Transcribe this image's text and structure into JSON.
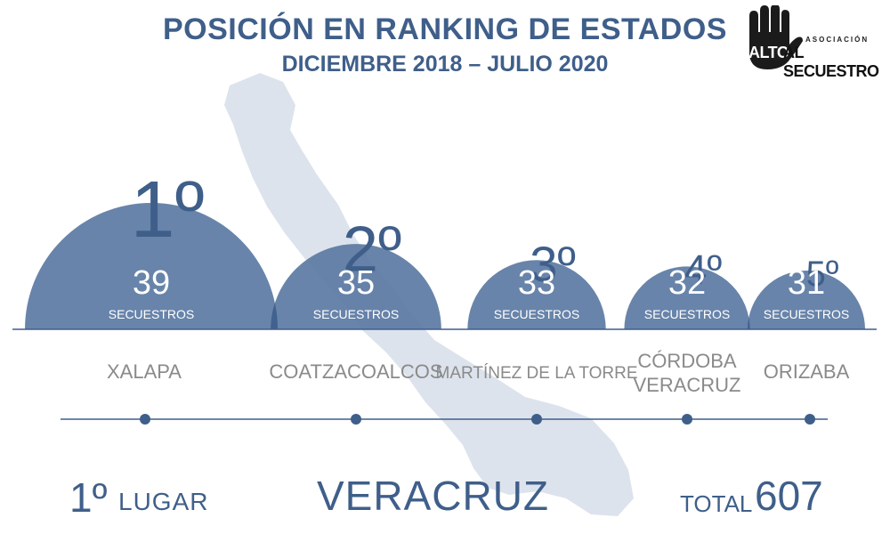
{
  "header": {
    "title": "POSICIÓN EN RANKING DE ESTADOS",
    "subtitle": "DICIEMBRE 2018 – JULIO 2020"
  },
  "logo": {
    "association": "ASOCIACIÓN",
    "alto": "ALTO",
    "name": "AL SECUESTRO"
  },
  "colors": {
    "circle_fill": "#5b79a3",
    "circle_overlap": "#41618f",
    "title_text": "#3f5f8a",
    "city_text": "#8a8a8a",
    "map_fill": "#dde3ed",
    "baseline": "#3f5f8a"
  },
  "chart_data": {
    "type": "bubble-ranking",
    "unit_label": "SECUESTROS",
    "items": [
      {
        "rank": "1º",
        "city": [
          "XALAPA"
        ],
        "value": 39
      },
      {
        "rank": "2º",
        "city": [
          "COATZACOALCOS"
        ],
        "value": 35
      },
      {
        "rank": "3º",
        "city": [
          "MARTÍNEZ DE LA TORRE"
        ],
        "value": 33
      },
      {
        "rank": "4º",
        "city": [
          "CÓRDOBA",
          "VERACRUZ"
        ],
        "value": 32
      },
      {
        "rank": "5º",
        "city": [
          "ORIZABA"
        ],
        "value": 31
      }
    ]
  },
  "footer": {
    "place": "1º",
    "place_label": "LUGAR",
    "state": "VERACRUZ",
    "total_label": "TOTAL",
    "total_value": "607"
  }
}
